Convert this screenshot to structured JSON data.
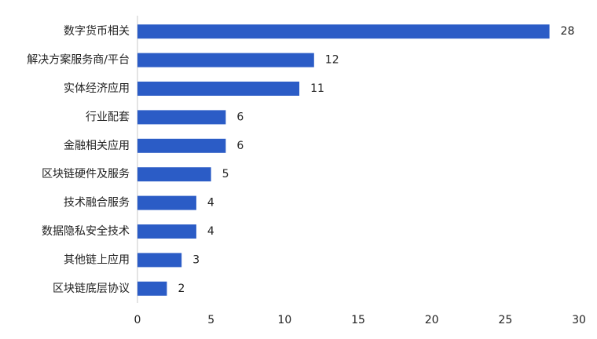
{
  "chart_data": {
    "type": "hbar",
    "categories": [
      "数字货币相关",
      "解决方案服务商/平台",
      "实体经济应用",
      "行业配套",
      "金融相关应用",
      "区块链硬件及服务",
      "技术融合服务",
      "数据隐私安全技术",
      "其他链上应用",
      "区块链底层协议"
    ],
    "values": [
      28,
      12,
      11,
      6,
      6,
      5,
      4,
      4,
      3,
      2
    ],
    "color": "#2b5cc6",
    "xlim": [
      0,
      30
    ],
    "xticks": [
      0,
      5,
      10,
      15,
      20,
      25,
      30
    ],
    "grid": false
  }
}
